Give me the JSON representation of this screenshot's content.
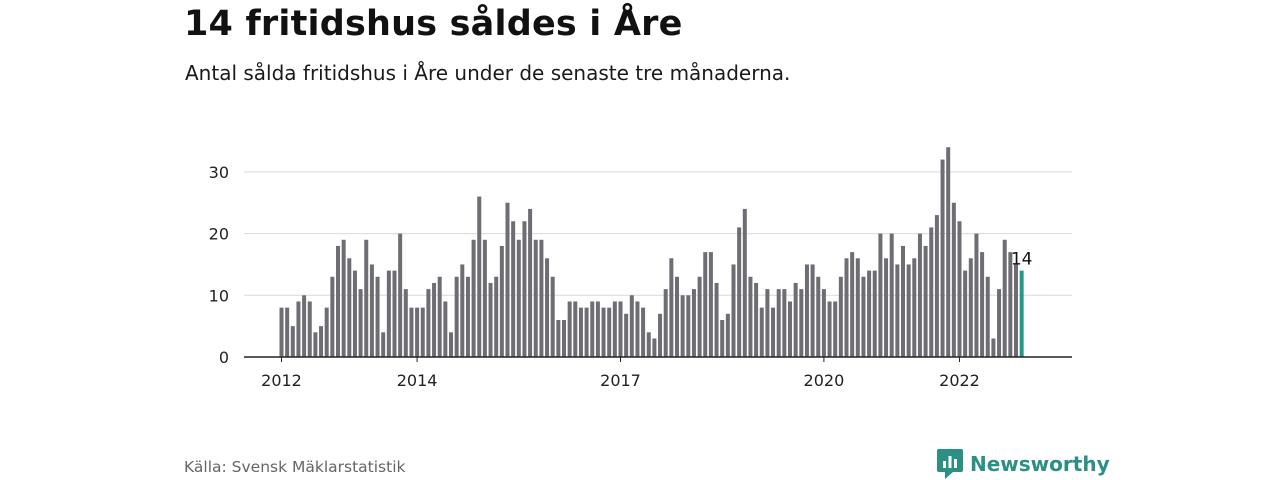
{
  "header": {
    "title": "14 fritidshus såldes i Åre",
    "subtitle": "Antal sålda fritidshus i Åre under de senaste tre månaderna."
  },
  "footer": {
    "source": "Källa: Svensk Mäklarstatistik",
    "brand": "Newsworthy",
    "brand_icon": "newsworthy-logo-icon",
    "brand_color": "#2a8f84"
  },
  "chart_data": {
    "type": "bar",
    "title": "14 fritidshus såldes i Åre",
    "subtitle": "Antal sålda fritidshus i Åre under de senaste tre månaderna.",
    "x_start": "2012-01",
    "x_interval": "month",
    "x_tick_labels": [
      "2012",
      "2014",
      "2017",
      "2020",
      "2022"
    ],
    "y_tick_labels": [
      "0",
      "10",
      "20",
      "30"
    ],
    "ylim": [
      0,
      35
    ],
    "grid": true,
    "bar_color": "#6e6d73",
    "highlight_color": "#25978b",
    "highlight_label": "14",
    "values": [
      8,
      8,
      5,
      9,
      10,
      9,
      4,
      5,
      8,
      13,
      18,
      19,
      16,
      14,
      11,
      19,
      15,
      13,
      4,
      14,
      14,
      20,
      11,
      8,
      8,
      8,
      11,
      12,
      13,
      9,
      4,
      13,
      15,
      13,
      19,
      26,
      19,
      12,
      13,
      18,
      25,
      22,
      19,
      22,
      24,
      19,
      19,
      16,
      13,
      6,
      6,
      9,
      9,
      8,
      8,
      9,
      9,
      8,
      8,
      9,
      9,
      7,
      10,
      9,
      8,
      4,
      3,
      7,
      11,
      16,
      13,
      10,
      10,
      11,
      13,
      17,
      17,
      12,
      6,
      7,
      15,
      21,
      24,
      13,
      12,
      8,
      11,
      8,
      11,
      11,
      9,
      12,
      11,
      15,
      15,
      13,
      11,
      9,
      9,
      13,
      16,
      17,
      16,
      13,
      14,
      14,
      20,
      16,
      20,
      15,
      18,
      15,
      16,
      20,
      18,
      21,
      23,
      32,
      34,
      25,
      22,
      14,
      16,
      20,
      17,
      13,
      3,
      11,
      19,
      17,
      15,
      14
    ]
  }
}
